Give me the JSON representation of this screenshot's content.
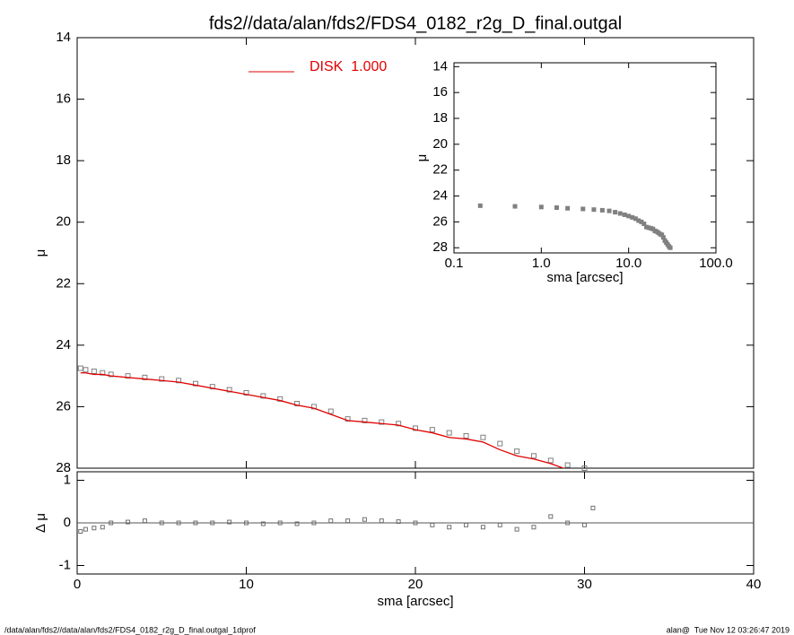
{
  "page": {
    "footer_left": "/data/alan/fds2//data/alan/fds2/FDS4_0182_r2g_D_final.outgal_1dprof",
    "footer_right": "alan@  Tue Nov 12 03:26:47 2019"
  },
  "chart_data": [
    {
      "type": "line",
      "title": "fds2//data/alan/fds2/FDS4_0182_r2g_D_final.outgal",
      "ylabel": "μ",
      "x": [
        0.2,
        0.5,
        1,
        1.5,
        2,
        3,
        4,
        5,
        6,
        7,
        8,
        9,
        10,
        11,
        12,
        13,
        14,
        15,
        16,
        17,
        18,
        19,
        20,
        21,
        22,
        23,
        24,
        25,
        26,
        27,
        28,
        29,
        30
      ],
      "series": [
        {
          "style": "markers",
          "color": "#808080",
          "values": [
            24.75,
            24.8,
            24.85,
            24.9,
            24.95,
            25.0,
            25.05,
            25.1,
            25.15,
            25.25,
            25.35,
            25.45,
            25.55,
            25.65,
            25.75,
            25.9,
            26.0,
            26.15,
            26.4,
            26.45,
            26.5,
            26.55,
            26.7,
            26.75,
            26.85,
            26.95,
            27.0,
            27.2,
            27.45,
            27.6,
            27.75,
            27.9,
            28.0
          ]
        },
        {
          "style": "line",
          "name": "DISK  1.000",
          "color": "#e00000",
          "values": [
            24.9,
            24.9,
            24.95,
            24.95,
            25.0,
            25.05,
            25.1,
            25.15,
            25.2,
            25.3,
            25.4,
            25.5,
            25.6,
            25.7,
            25.8,
            25.95,
            26.05,
            26.25,
            26.45,
            26.5,
            26.55,
            26.6,
            26.75,
            26.85,
            27.0,
            27.05,
            27.15,
            27.4,
            27.6,
            27.7,
            27.85,
            28.05,
            28.2
          ]
        }
      ],
      "xlim": [
        0,
        40
      ],
      "xticks": [
        0,
        10,
        20,
        30,
        40
      ],
      "xtick_labels": false,
      "ylim": [
        14,
        28
      ],
      "yticks": [
        14,
        16,
        18,
        20,
        22,
        24,
        26,
        28
      ],
      "y_reversed": true,
      "legend": "top-center"
    },
    {
      "type": "line",
      "xlabel": "sma [arcsec]",
      "ylabel": "Δ μ",
      "x": [
        0.2,
        0.5,
        1,
        1.5,
        2,
        3,
        4,
        5,
        6,
        7,
        8,
        9,
        10,
        11,
        12,
        13,
        14,
        15,
        16,
        17,
        18,
        19,
        20,
        21,
        22,
        23,
        24,
        25,
        26,
        27,
        28,
        29,
        30,
        30.5
      ],
      "series": [
        {
          "style": "markers",
          "color": "#707070",
          "values": [
            -0.2,
            -0.15,
            -0.12,
            -0.1,
            0.0,
            0.02,
            0.05,
            0.0,
            0.0,
            0.0,
            0.0,
            0.02,
            0.0,
            -0.02,
            0.0,
            -0.02,
            0.0,
            0.05,
            0.05,
            0.08,
            0.05,
            0.03,
            0.0,
            -0.05,
            -0.1,
            -0.05,
            -0.1,
            -0.05,
            -0.15,
            -0.1,
            0.15,
            0.0,
            -0.05,
            0.35
          ]
        }
      ],
      "xlim": [
        0,
        40
      ],
      "xticks": [
        0,
        10,
        20,
        30,
        40
      ],
      "ylim": [
        -1.2,
        1.2
      ],
      "yticks": [
        -1,
        0,
        1
      ],
      "hline": 0
    },
    {
      "type": "line",
      "xlabel": "sma [arcsec]",
      "ylabel": "μ",
      "xlog": true,
      "x": [
        0.2,
        0.5,
        1,
        1.5,
        2,
        3,
        4,
        5,
        6,
        7,
        8,
        9,
        10,
        11,
        12,
        13,
        14,
        15,
        16,
        17,
        18,
        19,
        20,
        21,
        22,
        23,
        24,
        25,
        26,
        27,
        28,
        29,
        30
      ],
      "series": [
        {
          "style": "markers",
          "color": "#808080",
          "values": [
            24.75,
            24.8,
            24.85,
            24.9,
            24.95,
            25.0,
            25.05,
            25.1,
            25.15,
            25.25,
            25.35,
            25.45,
            25.55,
            25.65,
            25.75,
            25.9,
            26.0,
            26.15,
            26.4,
            26.45,
            26.5,
            26.55,
            26.7,
            26.75,
            26.85,
            26.95,
            27.0,
            27.2,
            27.45,
            27.6,
            27.75,
            27.9,
            28.0
          ]
        }
      ],
      "xlim": [
        0.1,
        100
      ],
      "xticks": [
        {
          "value": 0.1,
          "label": "0.1"
        },
        {
          "value": 1,
          "label": "1.0"
        },
        {
          "value": 10,
          "label": "10.0"
        },
        {
          "value": 100,
          "label": "100.0"
        }
      ],
      "ylim": [
        13.7,
        28.4
      ],
      "yticks": [
        14,
        16,
        18,
        20,
        22,
        24,
        26,
        28
      ],
      "y_reversed": true
    }
  ]
}
